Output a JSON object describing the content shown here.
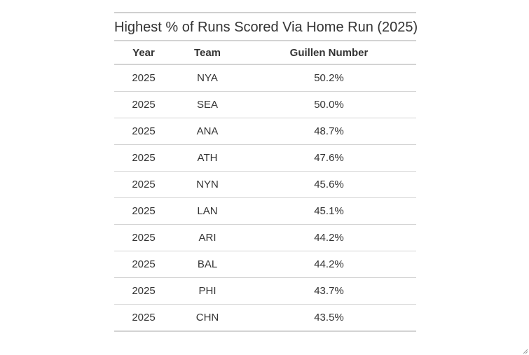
{
  "chart_data": {
    "type": "table",
    "title": "Highest % of Runs Scored Via Home Run (2025)",
    "columns": [
      "Year",
      "Team",
      "Guillen Number"
    ],
    "rows": [
      [
        "2025",
        "NYA",
        "50.2%"
      ],
      [
        "2025",
        "SEA",
        "50.0%"
      ],
      [
        "2025",
        "ANA",
        "48.7%"
      ],
      [
        "2025",
        "ATH",
        "47.6%"
      ],
      [
        "2025",
        "NYN",
        "45.6%"
      ],
      [
        "2025",
        "LAN",
        "45.1%"
      ],
      [
        "2025",
        "ARI",
        "44.2%"
      ],
      [
        "2025",
        "BAL",
        "44.2%"
      ],
      [
        "2025",
        "PHI",
        "43.7%"
      ],
      [
        "2025",
        "CHN",
        "43.5%"
      ]
    ]
  },
  "colors": {
    "text": "#333333",
    "rule": "#d3d3d3"
  },
  "icons": {
    "corner": "resize-grip-icon"
  }
}
